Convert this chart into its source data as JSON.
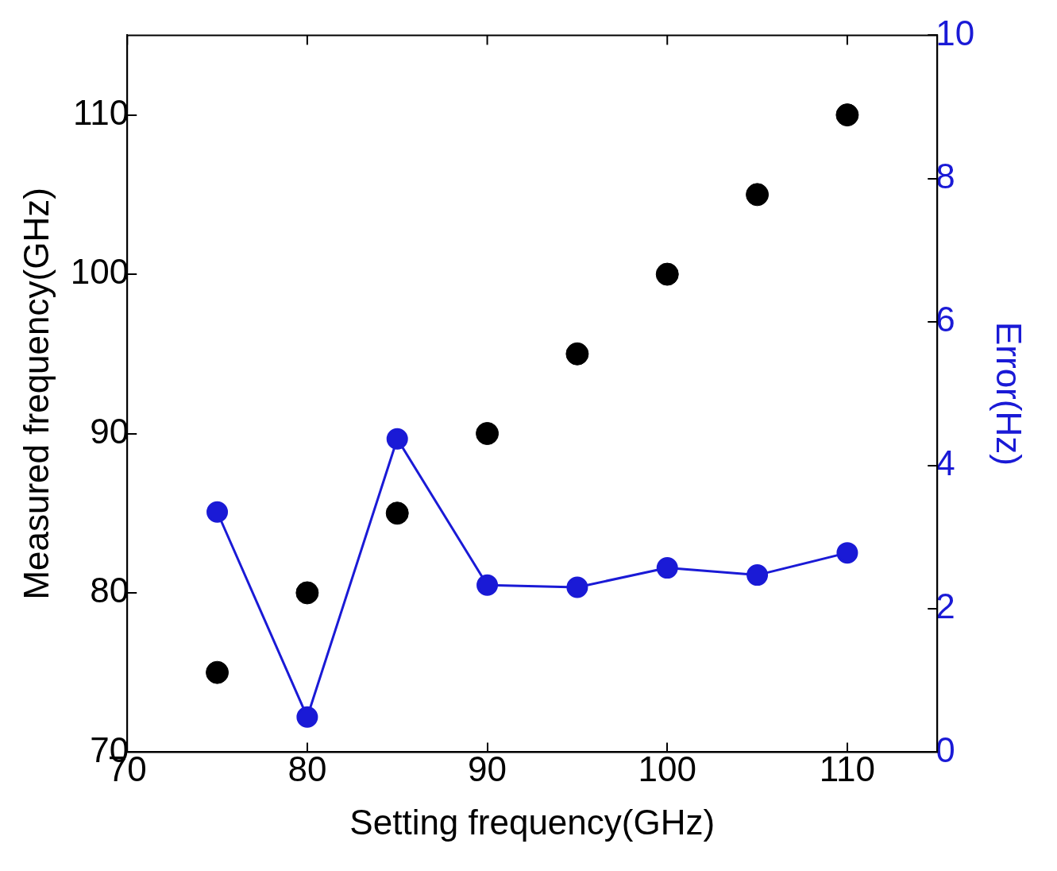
{
  "chart_data": {
    "type": "scatter",
    "xlabel": "Setting frequency(GHz)",
    "ylabel": "Measured frequency(GHz)",
    "y2label": "Error(Hz)",
    "x": [
      75,
      80,
      85,
      90,
      95,
      100,
      105,
      110
    ],
    "series": [
      {
        "color": "#000000",
        "values": [
          75,
          80,
          85,
          90,
          95,
          100,
          105,
          110
        ]
      },
      {
        "type": "line",
        "axis": "y2",
        "color": "#1a1ad6",
        "values": [
          3.35,
          0.49,
          4.37,
          2.33,
          2.3,
          2.57,
          2.47,
          2.78
        ]
      }
    ],
    "xlim": [
      70,
      115
    ],
    "xticks": [
      70,
      80,
      90,
      100,
      110
    ],
    "ylim": [
      70,
      115
    ],
    "yticks": [
      70,
      80,
      90,
      100,
      110
    ],
    "y2lim": [
      0,
      10
    ],
    "y2ticks": [
      0,
      2,
      4,
      6,
      8,
      10
    ],
    "marker": "circle",
    "line_style": "solid",
    "grid": false,
    "legend": false
  }
}
